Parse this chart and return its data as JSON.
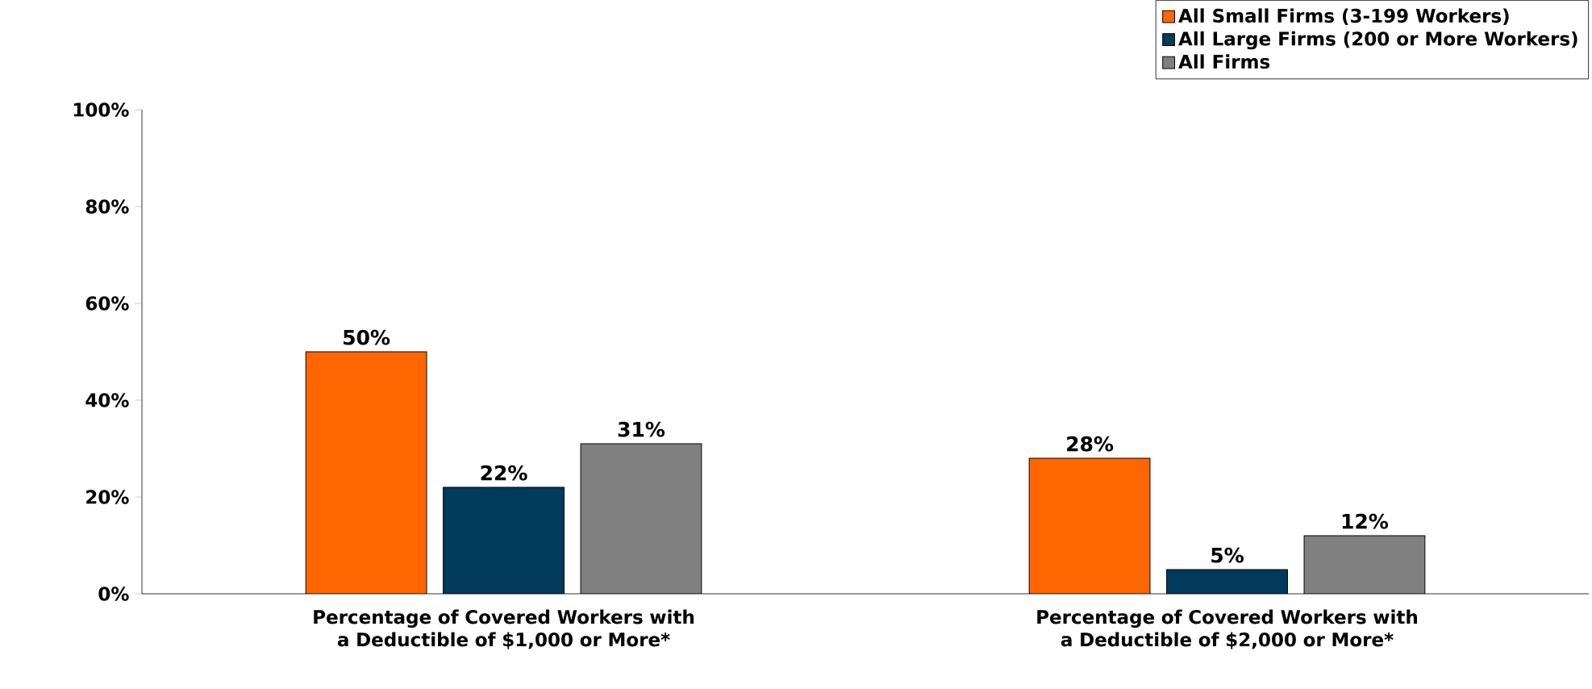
{
  "chart_data": {
    "type": "bar",
    "categories": [
      "Percentage of Covered Workers with a Deductible of  $1,000 or More*",
      "Percentage of Covered Workers with a Deductible of  $2,000 or More*"
    ],
    "series": [
      {
        "name": "All Small Firms (3-199 Workers)",
        "color": "#ff6600",
        "values": [
          50,
          28
        ],
        "value_labels": [
          "50%",
          "28%"
        ]
      },
      {
        "name": "All Large Firms (200 or More Workers)",
        "color": "#003a5c",
        "values": [
          22,
          5
        ],
        "value_labels": [
          "22%",
          "5%"
        ]
      },
      {
        "name": "All Firms",
        "color": "#808080",
        "values": [
          31,
          12
        ],
        "value_labels": [
          "31%",
          "12%"
        ]
      }
    ],
    "ylim": [
      0,
      100
    ],
    "yticks": [
      {
        "value": 0,
        "label": "0%"
      },
      {
        "value": 20,
        "label": "20%"
      },
      {
        "value": 40,
        "label": "40%"
      },
      {
        "value": 60,
        "label": "60%"
      },
      {
        "value": 80,
        "label": "80%"
      },
      {
        "value": 100,
        "label": "100%"
      }
    ],
    "legend": "top right"
  }
}
